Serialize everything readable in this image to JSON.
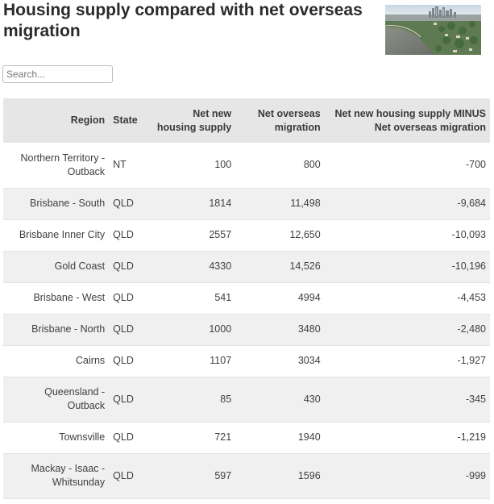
{
  "page": {
    "title": "Housing supply compared with net overseas migration"
  },
  "search": {
    "placeholder": "Search..."
  },
  "table": {
    "headers": {
      "region": "Region",
      "state": "State",
      "supply": "Net new housing supply",
      "migration": "Net overseas migration",
      "difference": "Net new housing supply MINUS Net overseas migration"
    },
    "rows": [
      {
        "region": "Northern Territory - Outback",
        "state": "NT",
        "supply": "100",
        "migration": "800",
        "difference": "-700"
      },
      {
        "region": "Brisbane - South",
        "state": "QLD",
        "supply": "1814",
        "migration": "11,498",
        "difference": "-9,684"
      },
      {
        "region": "Brisbane Inner City",
        "state": "QLD",
        "supply": "2557",
        "migration": "12,650",
        "difference": "-10,093"
      },
      {
        "region": "Gold Coast",
        "state": "QLD",
        "supply": "4330",
        "migration": "14,526",
        "difference": "-10,196"
      },
      {
        "region": "Brisbane - West",
        "state": "QLD",
        "supply": "541",
        "migration": "4994",
        "difference": "-4,453"
      },
      {
        "region": "Brisbane - North",
        "state": "QLD",
        "supply": "1000",
        "migration": "3480",
        "difference": "-2,480"
      },
      {
        "region": "Cairns",
        "state": "QLD",
        "supply": "1107",
        "migration": "3034",
        "difference": "-1,927"
      },
      {
        "region": "Queensland - Outback",
        "state": "QLD",
        "supply": "85",
        "migration": "430",
        "difference": "-345"
      },
      {
        "region": "Townsville",
        "state": "QLD",
        "supply": "721",
        "migration": "1940",
        "difference": "-1,219"
      },
      {
        "region": "Mackay - Isaac - Whitsunday",
        "state": "QLD",
        "supply": "597",
        "migration": "1596",
        "difference": "-999"
      }
    ]
  }
}
